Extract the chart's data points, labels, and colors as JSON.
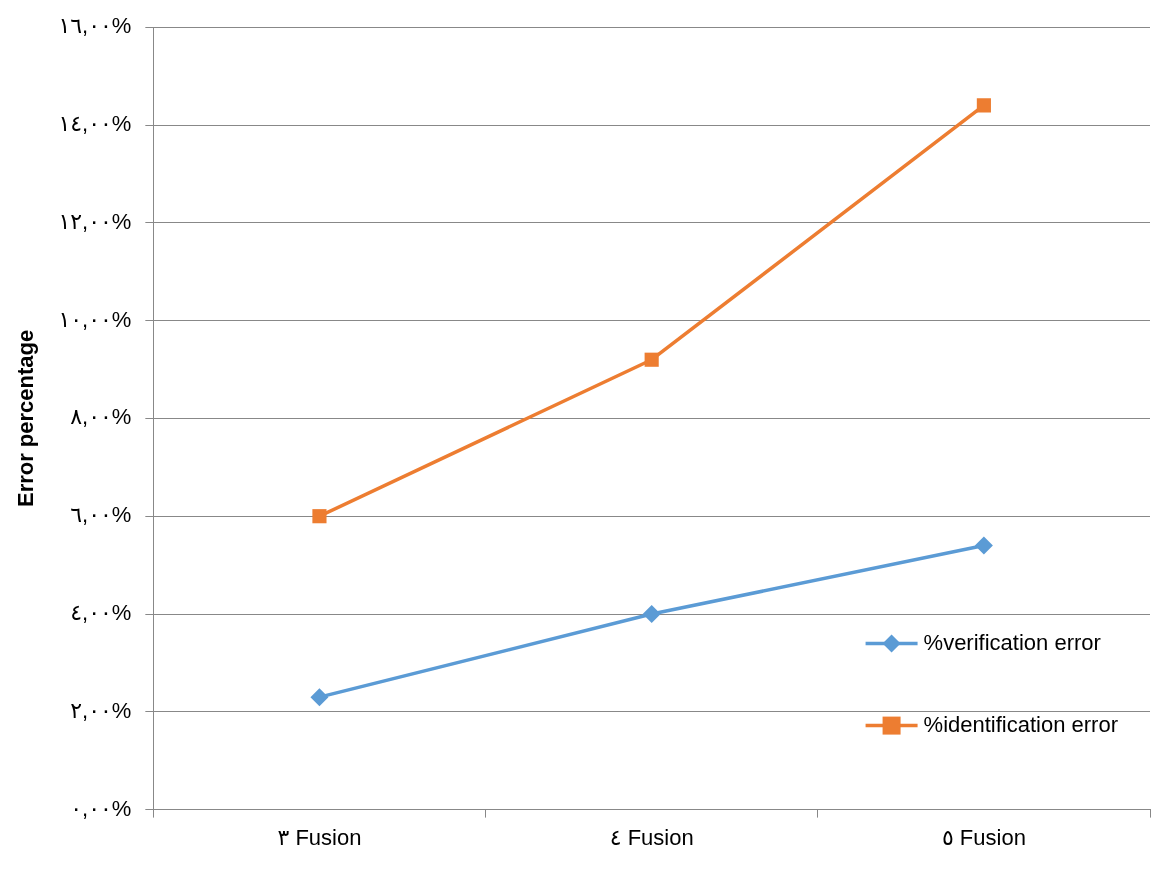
{
  "chart_data": {
    "type": "line",
    "ylabel": "Error percentage",
    "categories": [
      "٣ Fusion",
      "٤ Fusion",
      "٥ Fusion"
    ],
    "series": [
      {
        "name": "%verification error",
        "color": "#5b9bd5",
        "values": [
          2.3,
          4.0,
          5.4
        ],
        "marker": "diamond"
      },
      {
        "name": "%identification error",
        "color": "#ed7d31",
        "values": [
          6.0,
          9.2,
          14.4
        ],
        "marker": "square"
      }
    ],
    "ylim": [
      0,
      16
    ],
    "yticks": [
      {
        "value": 0,
        "label": "٠,٠٠%"
      },
      {
        "value": 2,
        "label": "٢,٠٠%"
      },
      {
        "value": 4,
        "label": "٤,٠٠%"
      },
      {
        "value": 6,
        "label": "٦,٠٠%"
      },
      {
        "value": 8,
        "label": "٨,٠٠%"
      },
      {
        "value": 10,
        "label": "١٠,٠٠%"
      },
      {
        "value": 12,
        "label": "١٢,٠٠%"
      },
      {
        "value": 14,
        "label": "١٤,٠٠%"
      },
      {
        "value": 16,
        "label": "١٦,٠٠%"
      }
    ],
    "grid": "y",
    "legend": "bottom right",
    "line_style": "solid"
  }
}
